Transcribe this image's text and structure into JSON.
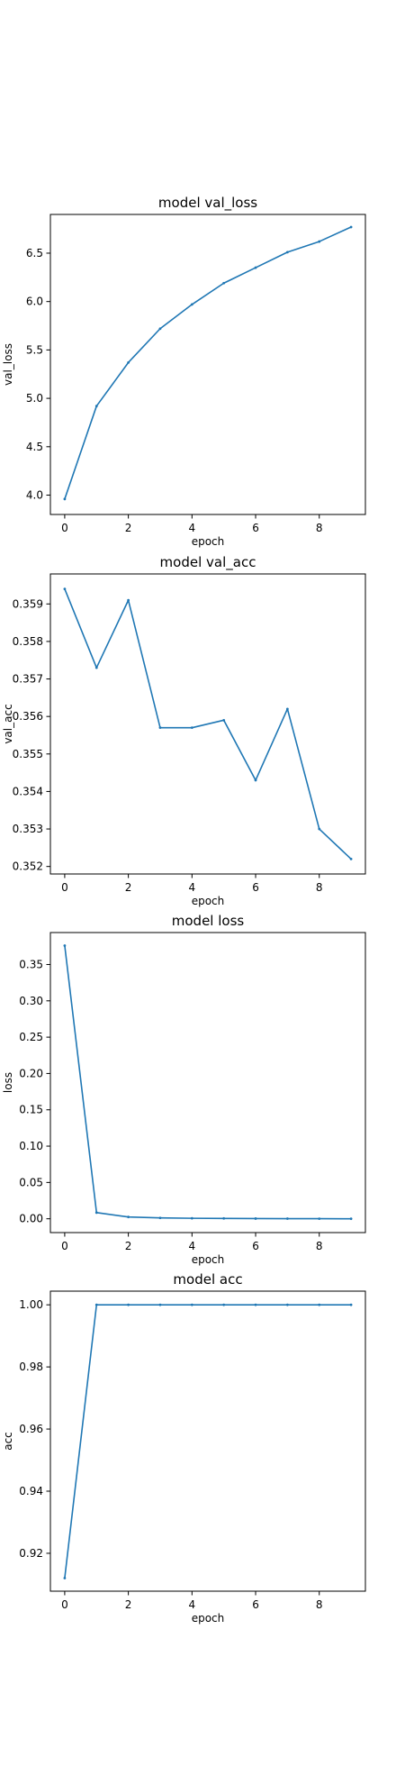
{
  "chart_data": [
    {
      "type": "line",
      "title": "model val_loss",
      "xlabel": "epoch",
      "ylabel": "val_loss",
      "xlim": [
        -0.45,
        9.45
      ],
      "ylim": [
        3.8,
        6.9
      ],
      "xticks": [
        0,
        2,
        4,
        6,
        8
      ],
      "xtick_labels": [
        "0",
        "2",
        "4",
        "6",
        "8"
      ],
      "yticks": [
        4.0,
        4.5,
        5.0,
        5.5,
        6.0,
        6.5
      ],
      "ytick_labels": [
        "4.0",
        "4.5",
        "5.0",
        "5.5",
        "6.0",
        "6.5"
      ],
      "grid": false,
      "color": "#1f77b4",
      "series": [
        {
          "x": [
            0,
            1,
            2,
            3,
            4,
            5,
            6,
            7,
            8,
            9
          ],
          "values": [
            3.96,
            4.92,
            5.37,
            5.72,
            5.97,
            6.19,
            6.35,
            6.51,
            6.62,
            6.77
          ]
        }
      ]
    },
    {
      "type": "line",
      "title": "model val_acc",
      "xlabel": "epoch",
      "ylabel": "val_acc",
      "xlim": [
        -0.45,
        9.45
      ],
      "ylim": [
        0.3518,
        0.3598
      ],
      "xticks": [
        0,
        2,
        4,
        6,
        8
      ],
      "xtick_labels": [
        "0",
        "2",
        "4",
        "6",
        "8"
      ],
      "yticks": [
        0.352,
        0.353,
        0.354,
        0.355,
        0.356,
        0.357,
        0.358,
        0.359
      ],
      "ytick_labels": [
        "0.352",
        "0.353",
        "0.354",
        "0.355",
        "0.356",
        "0.357",
        "0.358",
        "0.359"
      ],
      "grid": false,
      "color": "#1f77b4",
      "series": [
        {
          "x": [
            0,
            1,
            2,
            3,
            4,
            5,
            6,
            7,
            8,
            9
          ],
          "values": [
            0.3594,
            0.3573,
            0.3591,
            0.3557,
            0.3557,
            0.3559,
            0.3543,
            0.3562,
            0.353,
            0.3522
          ]
        }
      ]
    },
    {
      "type": "line",
      "title": "model loss",
      "xlabel": "epoch",
      "ylabel": "loss",
      "xlim": [
        -0.45,
        9.45
      ],
      "ylim": [
        -0.019,
        0.394
      ],
      "xticks": [
        0,
        2,
        4,
        6,
        8
      ],
      "xtick_labels": [
        "0",
        "2",
        "4",
        "6",
        "8"
      ],
      "yticks": [
        0.0,
        0.05,
        0.1,
        0.15,
        0.2,
        0.25,
        0.3,
        0.35
      ],
      "ytick_labels": [
        "0.00",
        "0.05",
        "0.10",
        "0.15",
        "0.20",
        "0.25",
        "0.30",
        "0.35"
      ],
      "grid": false,
      "color": "#1f77b4",
      "series": [
        {
          "x": [
            0,
            1,
            2,
            3,
            4,
            5,
            6,
            7,
            8,
            9
          ],
          "values": [
            0.376,
            0.0085,
            0.0025,
            0.0012,
            0.0007,
            0.0005,
            0.0003,
            0.0002,
            0.0001,
            0.0
          ]
        }
      ]
    },
    {
      "type": "line",
      "title": "model acc",
      "xlabel": "epoch",
      "ylabel": "acc",
      "xlim": [
        -0.45,
        9.45
      ],
      "ylim": [
        0.9078,
        1.0044
      ],
      "xticks": [
        0,
        2,
        4,
        6,
        8
      ],
      "xtick_labels": [
        "0",
        "2",
        "4",
        "6",
        "8"
      ],
      "yticks": [
        0.92,
        0.94,
        0.96,
        0.98,
        1.0
      ],
      "ytick_labels": [
        "0.92",
        "0.94",
        "0.96",
        "0.98",
        "1.00"
      ],
      "grid": false,
      "color": "#1f77b4",
      "series": [
        {
          "x": [
            0,
            1,
            2,
            3,
            4,
            5,
            6,
            7,
            8,
            9
          ],
          "values": [
            0.912,
            1.0,
            1.0,
            1.0,
            1.0,
            1.0,
            1.0,
            1.0,
            1.0,
            1.0
          ]
        }
      ]
    }
  ]
}
